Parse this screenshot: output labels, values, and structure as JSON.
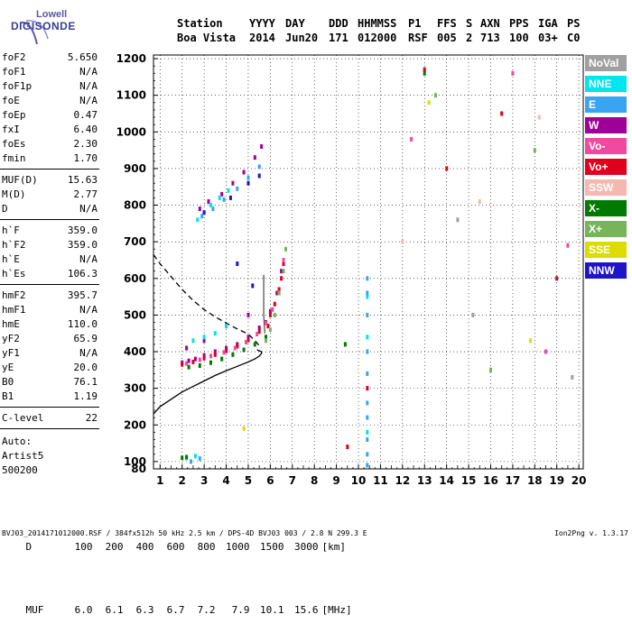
{
  "logo": {
    "line1": "Lowell",
    "line2": "DIGISONDE"
  },
  "header": {
    "labels": [
      "Station",
      "YYYY",
      "DAY",
      "DDD",
      "HHMMSS",
      "P1",
      "FFS",
      "S",
      "AXN",
      "PPS",
      "IGA",
      "PS"
    ],
    "values": [
      "Boa Vista",
      "2014",
      "Jun20",
      "171",
      "012000",
      "RSF",
      "005",
      "2",
      "713",
      "100",
      "03+",
      "C0"
    ]
  },
  "params": {
    "group1": [
      {
        "name": "foF2",
        "value": "5.650"
      },
      {
        "name": "foF1",
        "value": "N/A"
      },
      {
        "name": "foF1p",
        "value": "N/A"
      },
      {
        "name": "foE",
        "value": "N/A"
      },
      {
        "name": "foEp",
        "value": "0.47"
      },
      {
        "name": "fxI",
        "value": "6.40"
      },
      {
        "name": "foEs",
        "value": "2.30"
      },
      {
        "name": "fmin",
        "value": "1.70"
      }
    ],
    "group2": [
      {
        "name": "MUF(D)",
        "value": "15.63"
      },
      {
        "name": "M(D)",
        "value": "2.77"
      },
      {
        "name": "D",
        "value": "N/A"
      }
    ],
    "group3": [
      {
        "name": "h`F",
        "value": "359.0"
      },
      {
        "name": "h`F2",
        "value": "359.0"
      },
      {
        "name": "h`E",
        "value": "N/A"
      },
      {
        "name": "h`Es",
        "value": "106.3"
      }
    ],
    "group4": [
      {
        "name": "hmF2",
        "value": "395.7"
      },
      {
        "name": "hmF1",
        "value": "N/A"
      },
      {
        "name": "hmE",
        "value": "110.0"
      },
      {
        "name": "yF2",
        "value": "65.9"
      },
      {
        "name": "yF1",
        "value": "N/A"
      },
      {
        "name": "yE",
        "value": "20.0"
      },
      {
        "name": "B0",
        "value": "76.1"
      },
      {
        "name": "B1",
        "value": "1.19"
      }
    ],
    "group5": [
      {
        "name": "C-level",
        "value": "22"
      }
    ]
  },
  "autoscaling": {
    "line1": "Auto:",
    "line2": "Artist5",
    "line3": "500200"
  },
  "legend": [
    {
      "label": "NoVal",
      "color": "#a0a0a0"
    },
    {
      "label": "NNE",
      "color": "#00e5ee"
    },
    {
      "label": "E",
      "color": "#3aa4f0"
    },
    {
      "label": "W",
      "color": "#a0009a"
    },
    {
      "label": "Vo-",
      "color": "#f04aa0"
    },
    {
      "label": "Vo+",
      "color": "#e0001e"
    },
    {
      "label": "SSW",
      "color": "#f4b8b0"
    },
    {
      "label": "X-",
      "color": "#007a00"
    },
    {
      "label": "X+",
      "color": "#78b45a"
    },
    {
      "label": "SSE",
      "color": "#dcdc00"
    },
    {
      "label": "NNW",
      "color": "#1e14c8"
    }
  ],
  "dmuf": {
    "d_label": "D",
    "d_values": [
      "100",
      "200",
      "400",
      "600",
      "800",
      "1000",
      "1500",
      "3000"
    ],
    "d_unit": "[km]",
    "muf_label": "MUF",
    "muf_values": [
      "6.0",
      "6.1",
      "6.3",
      "6.7",
      "7.2",
      "7.9",
      "10.1",
      "15.6"
    ],
    "muf_unit": "[MHz]"
  },
  "footer": {
    "text": "BVJ03_2014171012000.RSF / 384fx512h 50 kHz 2.5 km / DPS-4D BVJ03 003 / 2.8 N 299.3 E",
    "version": "Ion2Png v. 1.3.17"
  },
  "chart_data": {
    "type": "scatter",
    "xlim": [
      0.7,
      20.2
    ],
    "ylim": [
      80,
      1210
    ],
    "xticks": [
      1,
      2,
      3,
      4,
      5,
      6,
      7,
      8,
      9,
      10,
      11,
      12,
      13,
      14,
      15,
      16,
      17,
      18,
      19,
      20
    ],
    "yticks": [
      80,
      100,
      200,
      300,
      400,
      500,
      600,
      700,
      800,
      900,
      1000,
      1100,
      1200
    ],
    "grid": true,
    "series": [
      {
        "name": "W",
        "color": "#a0009a",
        "points": [
          [
            2.0,
            370
          ],
          [
            2.3,
            375
          ],
          [
            2.6,
            380
          ],
          [
            3.0,
            390
          ],
          [
            3.5,
            400
          ],
          [
            4.0,
            410
          ],
          [
            4.5,
            420
          ],
          [
            5.0,
            440
          ],
          [
            5.5,
            465
          ],
          [
            6.0,
            510
          ],
          [
            6.3,
            560
          ],
          [
            6.5,
            620
          ],
          [
            2.8,
            790
          ],
          [
            3.2,
            810
          ],
          [
            3.8,
            830
          ],
          [
            4.3,
            860
          ],
          [
            4.8,
            890
          ],
          [
            5.3,
            930
          ],
          [
            5.6,
            960
          ],
          [
            2.2,
            410
          ],
          [
            3.0,
            430
          ],
          [
            4.0,
            470
          ],
          [
            5.0,
            500
          ]
        ]
      },
      {
        "name": "Vo+",
        "color": "#e0001e",
        "points": [
          [
            2.0,
            365
          ],
          [
            2.5,
            372
          ],
          [
            3.0,
            382
          ],
          [
            3.5,
            392
          ],
          [
            4.0,
            402
          ],
          [
            4.5,
            415
          ],
          [
            5.0,
            432
          ],
          [
            5.5,
            455
          ],
          [
            5.8,
            480
          ],
          [
            6.0,
            500
          ],
          [
            6.2,
            530
          ],
          [
            6.4,
            570
          ],
          [
            6.6,
            640
          ],
          [
            5.9,
            470
          ],
          [
            6.5,
            600
          ],
          [
            9.5,
            140
          ],
          [
            10.4,
            300
          ],
          [
            13.0,
            1170
          ],
          [
            14.0,
            900
          ],
          [
            16.5,
            1050
          ],
          [
            19.0,
            600
          ]
        ]
      },
      {
        "name": "Vo-",
        "color": "#f04aa0",
        "points": [
          [
            2.2,
            368
          ],
          [
            2.8,
            378
          ],
          [
            3.3,
            388
          ],
          [
            3.9,
            398
          ],
          [
            4.4,
            410
          ],
          [
            4.9,
            426
          ],
          [
            5.4,
            448
          ],
          [
            5.8,
            478
          ],
          [
            6.1,
            515
          ],
          [
            6.4,
            560
          ],
          [
            6.6,
            650
          ],
          [
            12.4,
            980
          ],
          [
            17.0,
            1160
          ],
          [
            18.5,
            400
          ],
          [
            19.5,
            690
          ]
        ]
      },
      {
        "name": "NNE",
        "color": "#00e5ee",
        "points": [
          [
            2.7,
            760
          ],
          [
            3.0,
            780
          ],
          [
            3.3,
            800
          ],
          [
            3.7,
            820
          ],
          [
            4.1,
            840
          ],
          [
            2.5,
            430
          ],
          [
            3.0,
            440
          ],
          [
            3.5,
            450
          ],
          [
            4.0,
            470
          ],
          [
            2.2,
            110
          ],
          [
            2.6,
            115
          ],
          [
            10.4,
            550
          ],
          [
            10.4,
            440
          ],
          [
            10.4,
            180
          ]
        ]
      },
      {
        "name": "E",
        "color": "#3aa4f0",
        "points": [
          [
            2.9,
            770
          ],
          [
            3.4,
            790
          ],
          [
            3.9,
            815
          ],
          [
            4.5,
            845
          ],
          [
            5.0,
            875
          ],
          [
            5.5,
            905
          ],
          [
            2.4,
            100
          ],
          [
            2.8,
            108
          ],
          [
            10.4,
            600
          ],
          [
            10.4,
            560
          ],
          [
            10.4,
            500
          ],
          [
            10.4,
            400
          ],
          [
            10.4,
            340
          ],
          [
            10.4,
            260
          ],
          [
            10.4,
            220
          ],
          [
            10.4,
            160
          ],
          [
            10.4,
            120
          ],
          [
            10.4,
            90
          ]
        ]
      },
      {
        "name": "X-",
        "color": "#007a00",
        "points": [
          [
            2.3,
            358
          ],
          [
            2.8,
            362
          ],
          [
            3.3,
            370
          ],
          [
            3.8,
            380
          ],
          [
            4.3,
            392
          ],
          [
            4.8,
            405
          ],
          [
            5.3,
            420
          ],
          [
            5.8,
            440
          ],
          [
            2.0,
            110
          ],
          [
            2.2,
            112
          ],
          [
            9.4,
            420
          ],
          [
            13.0,
            1160
          ]
        ]
      },
      {
        "name": "X+",
        "color": "#78b45a",
        "points": [
          [
            5.8,
            430
          ],
          [
            6.0,
            460
          ],
          [
            6.2,
            500
          ],
          [
            6.4,
            560
          ],
          [
            6.6,
            620
          ],
          [
            6.7,
            680
          ],
          [
            13.5,
            1100
          ],
          [
            16.0,
            350
          ],
          [
            18.0,
            950
          ]
        ]
      },
      {
        "name": "SSE",
        "color": "#dcdc00",
        "points": [
          [
            4.8,
            190
          ],
          [
            13.2,
            1080
          ],
          [
            17.8,
            430
          ]
        ]
      },
      {
        "name": "SSW",
        "color": "#f4b8b0",
        "points": [
          [
            12.0,
            700
          ],
          [
            15.5,
            810
          ],
          [
            18.2,
            1040
          ]
        ]
      },
      {
        "name": "NNW",
        "color": "#1e14c8",
        "points": [
          [
            3.0,
            780
          ],
          [
            4.2,
            820
          ],
          [
            5.0,
            860
          ],
          [
            5.5,
            880
          ],
          [
            4.5,
            640
          ],
          [
            5.2,
            580
          ]
        ]
      },
      {
        "name": "NoVal",
        "color": "#a0a0a0",
        "points": [
          [
            14.5,
            760
          ],
          [
            15.2,
            500
          ],
          [
            19.7,
            330
          ]
        ]
      }
    ],
    "curves": [
      {
        "name": "electron-density-profile",
        "style": "solid",
        "color": "#000000",
        "points": [
          [
            0.7,
            230
          ],
          [
            1.0,
            250
          ],
          [
            1.5,
            270
          ],
          [
            2.0,
            290
          ],
          [
            2.5,
            305
          ],
          [
            3.0,
            320
          ],
          [
            3.5,
            335
          ],
          [
            4.0,
            348
          ],
          [
            4.5,
            360
          ],
          [
            5.0,
            372
          ],
          [
            5.3,
            380
          ],
          [
            5.5,
            388
          ],
          [
            5.6,
            395
          ],
          [
            5.6,
            400
          ],
          [
            5.4,
            405
          ]
        ]
      },
      {
        "name": "topside-profile",
        "style": "dashed",
        "color": "#000000",
        "points": [
          [
            0.7,
            665
          ],
          [
            1.0,
            640
          ],
          [
            1.5,
            605
          ],
          [
            2.0,
            570
          ],
          [
            2.5,
            540
          ],
          [
            3.0,
            515
          ],
          [
            3.5,
            495
          ],
          [
            4.0,
            478
          ],
          [
            4.5,
            462
          ],
          [
            5.0,
            448
          ],
          [
            5.3,
            430
          ],
          [
            5.6,
            410
          ]
        ]
      },
      {
        "name": "trace",
        "style": "solid",
        "color": "#555555",
        "points": [
          [
            5.7,
            610
          ],
          [
            5.7,
            500
          ],
          [
            5.75,
            450
          ]
        ]
      }
    ]
  }
}
